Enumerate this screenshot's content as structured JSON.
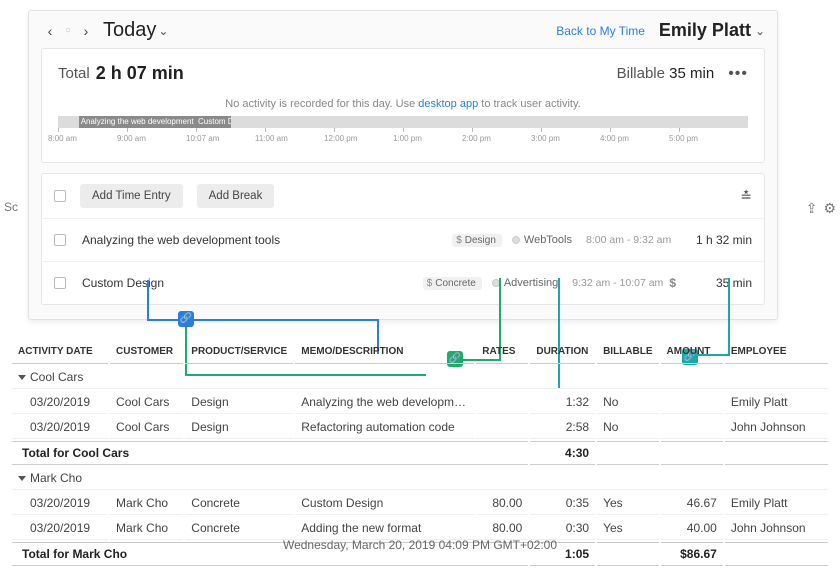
{
  "header": {
    "today_label": "Today",
    "back_link": "Back to My Time",
    "user_name": "Emily Platt"
  },
  "summary": {
    "total_label": "Total",
    "total_value": "2 h 07 min",
    "billable_label": "Billable",
    "billable_value": "35 min",
    "no_activity_pre": "No activity is recorded for this day. Use ",
    "no_activity_link": "desktop app",
    "no_activity_post": " to track user activity."
  },
  "timeline": {
    "ticks": [
      "8:00 am",
      "9:00 am",
      "10:07 am",
      "11:00 am",
      "12:00 pm",
      "1:00 pm",
      "2:00 pm",
      "3:00 pm",
      "4:00 pm",
      "5:00 pm"
    ],
    "blocks": [
      {
        "left_pct": 3,
        "width_pct": 17,
        "label": "Analyzing the web development"
      },
      {
        "left_pct": 20,
        "width_pct": 5,
        "label": "Custom De"
      }
    ]
  },
  "entries": {
    "add_entry_label": "Add Time Entry",
    "add_break_label": "Add Break",
    "rows": [
      {
        "desc": "Analyzing the web development tools",
        "tag": "Design",
        "project": "WebTools",
        "range": "8:00 am - 9:32 am",
        "show_dollar": false,
        "duration": "1 h 32 min"
      },
      {
        "desc": "Custom Design",
        "tag": "Concrete",
        "project": "Advertising",
        "range": "9:32 am - 10:07 am",
        "show_dollar": true,
        "duration": "35 min"
      }
    ]
  },
  "connectors": {
    "color_blue": "#2a7de1",
    "color_teal": "#1aa8a8",
    "color_green": "#21a86b"
  },
  "report": {
    "columns": [
      "ACTIVITY DATE",
      "CUSTOMER",
      "PRODUCT/SERVICE",
      "MEMO/DESCRIPTION",
      "RATES",
      "DURATION",
      "BILLABLE",
      "AMOUNT",
      "EMPLOYEE"
    ],
    "groups": [
      {
        "name": "Cool Cars",
        "rows": [
          {
            "date": "03/20/2019",
            "customer": "Cool Cars",
            "product": "Design",
            "memo": "Analyzing the web developm…",
            "rates": "",
            "duration": "1:32",
            "billable": "No",
            "amount": "",
            "employee": "Emily Platt"
          },
          {
            "date": "03/20/2019",
            "customer": "Cool Cars",
            "product": "Design",
            "memo": "Refactoring automation code",
            "rates": "",
            "duration": "2:58",
            "billable": "No",
            "amount": "",
            "employee": "John Johnson"
          }
        ],
        "total_label": "Total for Cool Cars",
        "total_duration": "4:30",
        "total_amount": ""
      },
      {
        "name": "Mark Cho",
        "rows": [
          {
            "date": "03/20/2019",
            "customer": "Mark Cho",
            "product": "Concrete",
            "memo": "Custom Design",
            "rates": "80.00",
            "duration": "0:35",
            "billable": "Yes",
            "amount": "46.67",
            "employee": "Emily Platt"
          },
          {
            "date": "03/20/2019",
            "customer": "Mark Cho",
            "product": "Concrete",
            "memo": "Adding the new format",
            "rates": "80.00",
            "duration": "0:30",
            "billable": "Yes",
            "amount": "40.00",
            "employee": "John Johnson"
          }
        ],
        "total_label": "Total for Mark Cho",
        "total_duration": "1:05",
        "total_amount": "$86.67"
      }
    ]
  },
  "footer": {
    "timestamp": "Wednesday, March 20, 2019   04:09 PM GMT+02:00"
  },
  "side": {
    "left_text": "Sc"
  }
}
